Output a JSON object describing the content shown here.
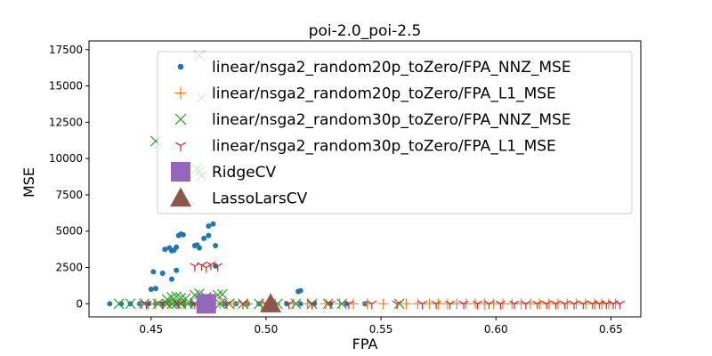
{
  "chart_data": {
    "type": "scatter",
    "title": "poi-2.0_poi-2.5",
    "xlabel": "FPA",
    "ylabel": "MSE",
    "xlim": [
      0.423,
      0.663
    ],
    "ylim": [
      -900,
      18100
    ],
    "xticks": [
      "0.45",
      "0.50",
      "0.55",
      "0.60",
      "0.65"
    ],
    "yticks": [
      "0",
      "2500",
      "5000",
      "7500",
      "10000",
      "12500",
      "15000",
      "17500"
    ],
    "legend_position": "top-right",
    "series": [
      {
        "name": "linear/nsga2_random20p_toZero/FPA_NNZ_MSE",
        "marker": "dot",
        "color": "#1f77b4",
        "points": [
          [
            0.432,
            0
          ],
          [
            0.437,
            0
          ],
          [
            0.441,
            0
          ],
          [
            0.445,
            0
          ],
          [
            0.449,
            0
          ],
          [
            0.452,
            0
          ],
          [
            0.455,
            0
          ],
          [
            0.458,
            0
          ],
          [
            0.461,
            0
          ],
          [
            0.464,
            0
          ],
          [
            0.468,
            0
          ],
          [
            0.472,
            0
          ],
          [
            0.477,
            0
          ],
          [
            0.482,
            0
          ],
          [
            0.487,
            0
          ],
          [
            0.492,
            0
          ],
          [
            0.497,
            0
          ],
          [
            0.503,
            0
          ],
          [
            0.509,
            0
          ],
          [
            0.515,
            0
          ],
          [
            0.521,
            0
          ],
          [
            0.528,
            0
          ],
          [
            0.535,
            0
          ],
          [
            0.543,
            0
          ],
          [
            0.45,
            1000
          ],
          [
            0.452,
            1050
          ],
          [
            0.451,
            2200
          ],
          [
            0.455,
            2100
          ],
          [
            0.459,
            1700
          ],
          [
            0.461,
            2300
          ],
          [
            0.456,
            3750
          ],
          [
            0.458,
            3850
          ],
          [
            0.459,
            3650
          ],
          [
            0.46,
            3700
          ],
          [
            0.461,
            3900
          ],
          [
            0.462,
            4700
          ],
          [
            0.463,
            4800
          ],
          [
            0.464,
            4750
          ],
          [
            0.469,
            4000
          ],
          [
            0.47,
            4050
          ],
          [
            0.471,
            3850
          ],
          [
            0.473,
            4500
          ],
          [
            0.475,
            4700
          ],
          [
            0.475,
            5350
          ],
          [
            0.477,
            5500
          ],
          [
            0.478,
            4000
          ],
          [
            0.478,
            2600
          ],
          [
            0.515,
            900
          ],
          [
            0.514,
            850
          ]
        ]
      },
      {
        "name": "linear/nsga2_random20p_toZero/FPA_L1_MSE",
        "marker": "plus",
        "color": "#ff7f0e",
        "points": [
          [
            0.446,
            0
          ],
          [
            0.452,
            0
          ],
          [
            0.458,
            0
          ],
          [
            0.465,
            0
          ],
          [
            0.473,
            0
          ],
          [
            0.48,
            0
          ],
          [
            0.486,
            0
          ],
          [
            0.492,
            0
          ],
          [
            0.498,
            0
          ],
          [
            0.504,
            0
          ],
          [
            0.512,
            0
          ],
          [
            0.518,
            0
          ],
          [
            0.526,
            0
          ],
          [
            0.532,
            0
          ],
          [
            0.538,
            0
          ],
          [
            0.544,
            0
          ],
          [
            0.551,
            0
          ],
          [
            0.561,
            0
          ],
          [
            0.566,
            0
          ],
          [
            0.571,
            0
          ],
          [
            0.575,
            0
          ],
          [
            0.579,
            0
          ],
          [
            0.583,
            0
          ],
          [
            0.587,
            0
          ],
          [
            0.591,
            0
          ],
          [
            0.595,
            0
          ],
          [
            0.599,
            0
          ],
          [
            0.603,
            0
          ],
          [
            0.607,
            0
          ],
          [
            0.611,
            0
          ],
          [
            0.615,
            0
          ],
          [
            0.619,
            0
          ],
          [
            0.623,
            0
          ],
          [
            0.627,
            0
          ],
          [
            0.631,
            0
          ],
          [
            0.635,
            0
          ],
          [
            0.639,
            0
          ],
          [
            0.643,
            0
          ],
          [
            0.646,
            0
          ],
          [
            0.649,
            0
          ],
          [
            0.652,
            0
          ]
        ]
      },
      {
        "name": "linear/nsga2_random30p_toZero/FPA_NNZ_MSE",
        "marker": "x",
        "color": "#2ca02c",
        "points": [
          [
            0.436,
            0
          ],
          [
            0.441,
            0
          ],
          [
            0.447,
            0
          ],
          [
            0.453,
            0
          ],
          [
            0.457,
            0
          ],
          [
            0.459,
            0
          ],
          [
            0.461,
            0
          ],
          [
            0.463,
            0
          ],
          [
            0.466,
            0
          ],
          [
            0.469,
            0
          ],
          [
            0.472,
            0
          ],
          [
            0.476,
            0
          ],
          [
            0.48,
            0
          ],
          [
            0.484,
            0
          ],
          [
            0.49,
            0
          ],
          [
            0.497,
            0
          ],
          [
            0.505,
            0
          ],
          [
            0.513,
            0
          ],
          [
            0.52,
            0
          ],
          [
            0.527,
            0
          ],
          [
            0.533,
            0
          ],
          [
            0.558,
            0
          ],
          [
            0.457,
            300
          ],
          [
            0.459,
            450
          ],
          [
            0.461,
            500
          ],
          [
            0.463,
            400
          ],
          [
            0.465,
            350
          ],
          [
            0.469,
            600
          ],
          [
            0.471,
            700
          ],
          [
            0.474,
            450
          ],
          [
            0.479,
            600
          ],
          [
            0.481,
            650
          ],
          [
            0.452,
            11200
          ],
          [
            0.471,
            17100
          ],
          [
            0.472,
            14200
          ],
          [
            0.47,
            9300
          ],
          [
            0.471,
            9100
          ],
          [
            0.472,
            8800
          ]
        ]
      },
      {
        "name": "linear/nsga2_random30p_toZero/FPA_L1_MSE",
        "marker": "tri_down",
        "color": "#d62728",
        "points": [
          [
            0.448,
            0
          ],
          [
            0.455,
            0
          ],
          [
            0.462,
            0
          ],
          [
            0.469,
            0
          ],
          [
            0.476,
            0
          ],
          [
            0.483,
            0
          ],
          [
            0.49,
            0
          ],
          [
            0.5,
            0
          ],
          [
            0.51,
            0
          ],
          [
            0.52,
            0
          ],
          [
            0.528,
            0
          ],
          [
            0.536,
            0
          ],
          [
            0.546,
            0
          ],
          [
            0.557,
            0
          ],
          [
            0.568,
            0
          ],
          [
            0.574,
            0
          ],
          [
            0.58,
            0
          ],
          [
            0.586,
            0
          ],
          [
            0.592,
            0
          ],
          [
            0.597,
            0
          ],
          [
            0.602,
            0
          ],
          [
            0.608,
            0
          ],
          [
            0.613,
            0
          ],
          [
            0.618,
            0
          ],
          [
            0.622,
            0
          ],
          [
            0.626,
            0
          ],
          [
            0.63,
            0
          ],
          [
            0.634,
            0
          ],
          [
            0.638,
            0
          ],
          [
            0.642,
            0
          ],
          [
            0.645,
            0
          ],
          [
            0.648,
            0
          ],
          [
            0.651,
            0
          ],
          [
            0.654,
            0
          ],
          [
            0.469,
            2600
          ],
          [
            0.472,
            2650
          ],
          [
            0.474,
            2500
          ],
          [
            0.476,
            2700
          ],
          [
            0.479,
            2600
          ],
          [
            0.467,
            6800
          ]
        ]
      },
      {
        "name": "RidgeCV",
        "marker": "square",
        "color": "#9467bd",
        "points": [
          [
            0.474,
            0
          ]
        ]
      },
      {
        "name": "LassoLarsCV",
        "marker": "triangle",
        "color": "#8c564b",
        "points": [
          [
            0.502,
            0
          ]
        ]
      }
    ]
  }
}
